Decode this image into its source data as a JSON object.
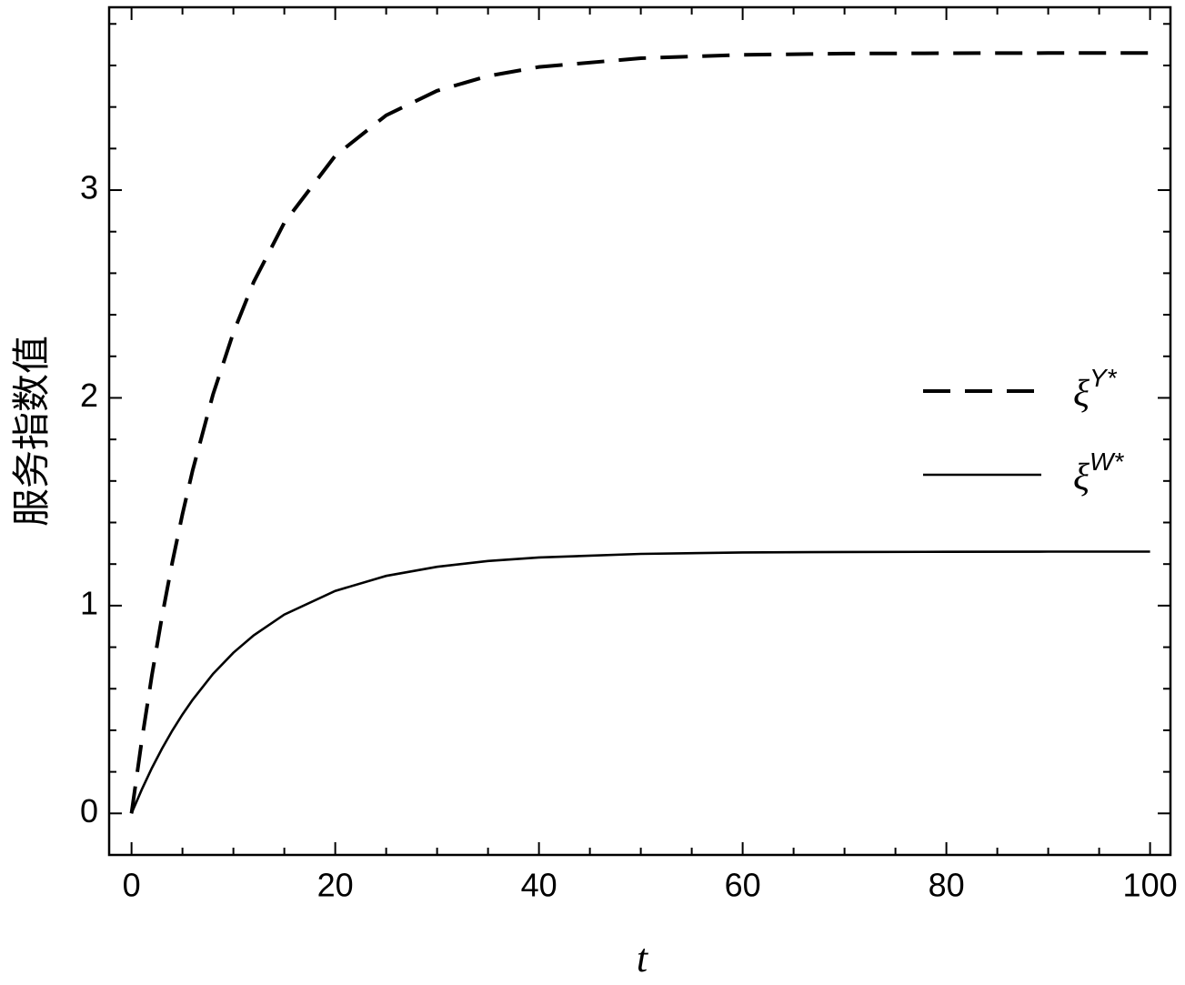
{
  "chart_data": {
    "type": "line",
    "x_label": "t",
    "y_label": "服务指数值",
    "x": [
      0,
      1,
      2,
      3,
      4,
      5,
      6,
      8,
      10,
      12,
      15,
      20,
      25,
      30,
      35,
      40,
      50,
      60,
      70,
      80,
      90,
      100
    ],
    "series": [
      {
        "name": "ξY*",
        "color": "#000000",
        "dash": true,
        "values": [
          0,
          0.348,
          0.664,
          0.949,
          1.207,
          1.44,
          1.651,
          2.016,
          2.314,
          2.558,
          2.843,
          3.165,
          3.36,
          3.478,
          3.549,
          3.593,
          3.635,
          3.651,
          3.657,
          3.659,
          3.66,
          3.66
        ]
      },
      {
        "name": "ξW*",
        "color": "#000000",
        "dash": false,
        "values": [
          0,
          0.114,
          0.218,
          0.312,
          0.398,
          0.476,
          0.547,
          0.671,
          0.773,
          0.857,
          0.957,
          1.071,
          1.143,
          1.187,
          1.215,
          1.232,
          1.249,
          1.256,
          1.258,
          1.259,
          1.26,
          1.26
        ]
      }
    ],
    "xlim": [
      -2.2,
      102
    ],
    "ylim": [
      -0.2,
      3.88
    ],
    "xticks": [
      0,
      20,
      40,
      60,
      80,
      100
    ],
    "yticks": [
      0,
      1,
      2,
      3
    ],
    "xminorticks": [
      5,
      10,
      15,
      25,
      30,
      35,
      45,
      50,
      55,
      65,
      70,
      75,
      85,
      90,
      95
    ],
    "yminorticks": [
      0.2,
      0.4,
      0.6,
      0.8,
      1.2,
      1.4,
      1.6,
      1.8,
      2.2,
      2.4,
      2.6,
      2.8,
      3.2,
      3.4,
      3.6,
      3.8
    ],
    "legend": "right",
    "grid": false
  }
}
